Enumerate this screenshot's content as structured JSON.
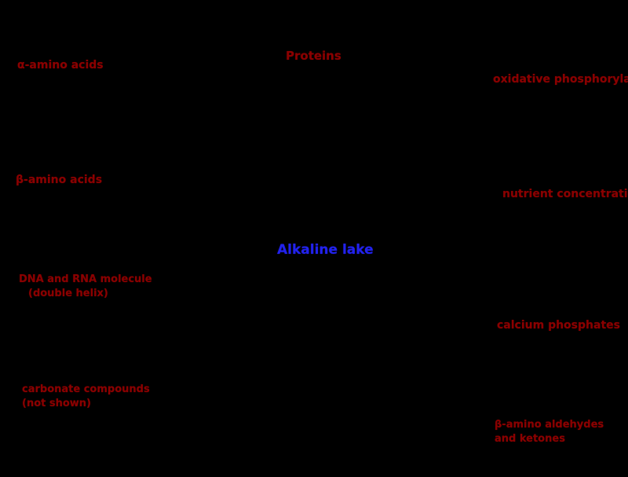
{
  "diagram": {
    "type": "concept-map",
    "background_color": "#000000",
    "node_label_color": "#8b0000",
    "center_label_color": "#2222ee",
    "center": {
      "label": "Alkaline lake"
    },
    "nodes": {
      "alpha_amino_acids": {
        "label": "α-amino acids"
      },
      "proteins": {
        "label": "Proteins"
      },
      "oxidative_phosphorylation": {
        "label": "oxidative phosphorylation"
      },
      "beta_amino_acids": {
        "label": "β-amino acids"
      },
      "nutrient_concentration": {
        "label": "nutrient concentration"
      },
      "dna_rna_molecule": {
        "line1": "DNA and RNA molecule",
        "line2": "(double helix)"
      },
      "calcium_phosphates": {
        "label": "calcium phosphates"
      },
      "carbonate_compounds": {
        "line1": "carbonate compounds",
        "line2": "(not shown)"
      },
      "amino_aldehydes_ketones": {
        "line1": "β-amino aldehydes",
        "line2": "and ketones"
      }
    }
  }
}
